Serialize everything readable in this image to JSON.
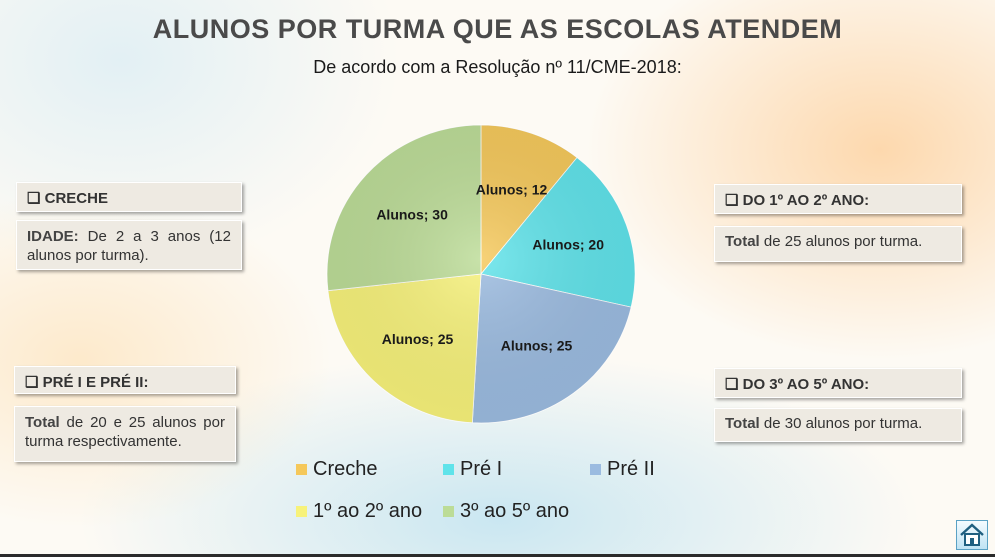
{
  "title": "ALUNOS POR TURMA QUE AS ESCOLAS ATENDEM",
  "subtitle": "De acordo com a Resolução nº 11/CME-2018:",
  "boxes": {
    "creche": {
      "head": "❑ CRECHE",
      "label": "IDADE:",
      "text": " De 2 a 3 anos (12 alunos por turma)."
    },
    "pre": {
      "head": "❑ PRÉ I E PRÉ II:",
      "label": "Total",
      "text": " de 20 e 25 alunos por turma respectivamente."
    },
    "ano12": {
      "head": "❑ DO 1º AO 2º ANO:",
      "label": "Total",
      "text": " de 25 alunos por turma."
    },
    "ano35": {
      "head": "❑ DO 3º AO 5º ANO:",
      "label": "Total",
      "text": " de 30 alunos por turma."
    }
  },
  "chart_data": {
    "type": "pie",
    "categories": [
      "Creche",
      "Pré I",
      "Pré II",
      "1º ao 2º ano",
      "3º ao 5º ano"
    ],
    "values": [
      12,
      20,
      25,
      25,
      30
    ],
    "data_labels": [
      "Alunos; 12",
      "Alunos; 20",
      "Alunos; 25",
      "Alunos; 25",
      "Alunos; 30"
    ],
    "colors": [
      "#f5c85a",
      "#5fe3ea",
      "#9bbbe0",
      "#f7f27a",
      "#bcdc97"
    ],
    "legend_position": "bottom"
  },
  "icons": {
    "home": "home-icon"
  }
}
